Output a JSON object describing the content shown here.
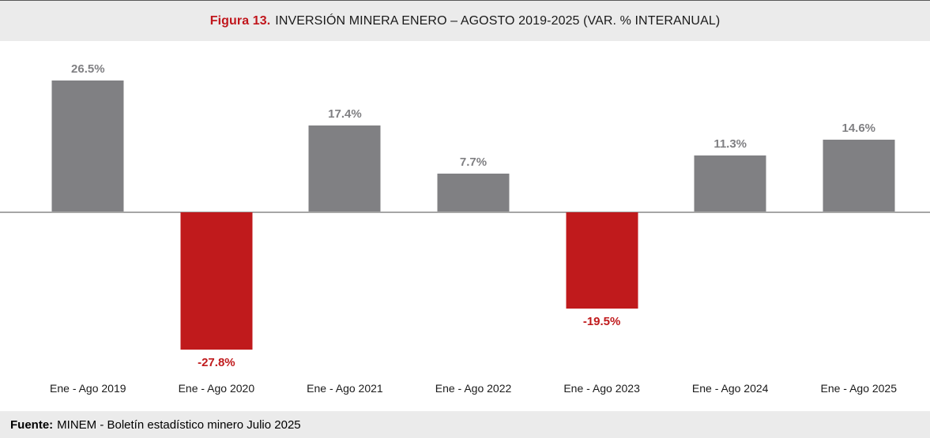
{
  "header": {
    "figure_label": "Figura 13.",
    "title": "INVERSIÓN MINERA ENERO – AGOSTO 2019-2025 (VAR. % INTERANUAL)"
  },
  "chart_data": {
    "type": "bar",
    "title": "Figura 13. INVERSIÓN MINERA ENERO – AGOSTO 2019-2025 (VAR. % INTERANUAL)",
    "categories": [
      "Ene - Ago 2019",
      "Ene - Ago 2020",
      "Ene - Ago 2021",
      "Ene - Ago 2022",
      "Ene - Ago 2023",
      "Ene - Ago 2024",
      "Ene - Ago 2025"
    ],
    "values": [
      26.5,
      -27.8,
      17.4,
      7.7,
      -19.5,
      11.3,
      14.6
    ],
    "value_labels": [
      "26.5%",
      "-27.8%",
      "17.4%",
      "7.7%",
      "-19.5%",
      "11.3%",
      "14.6%"
    ],
    "xlabel": "",
    "ylabel": "",
    "ylim": [
      -40,
      35
    ],
    "grid": false,
    "legend_position": "none",
    "data_label_rule": "positive values labeled above bar in gray, negative values labeled below bar in red",
    "colors": {
      "positive_bar": "#808083",
      "negative_bar": "#c01a1c",
      "zero_axis_line": "#a6a6a6"
    }
  },
  "footer": {
    "source_label": "Fuente:",
    "source_text": "MINEM - Boletín estadístico minero Julio 2025"
  },
  "theme": {
    "accent_red": "#c0161c",
    "band_background": "#ebebeb",
    "text_dark": "#1a1a1a"
  }
}
